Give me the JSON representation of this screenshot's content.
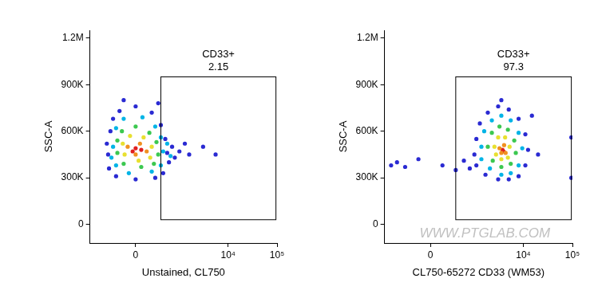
{
  "chart_data": [
    {
      "type": "scatter",
      "x_label": "Unstained, CL750",
      "y_label": "SSC-A",
      "log": "x",
      "grid": false,
      "xlim": [
        -1000,
        100000
      ],
      "xticks": [
        0,
        {
          "value": 10000,
          "label": "10⁴"
        },
        {
          "value": 100000,
          "label": "10⁵"
        }
      ],
      "ylim": [
        -120000,
        1250000
      ],
      "yticks": [
        0,
        {
          "value": 300000,
          "label": "300K"
        },
        {
          "value": 600000,
          "label": "600K"
        },
        {
          "value": 900000,
          "label": "900K"
        },
        {
          "value": 1200000,
          "label": "1.2M"
        }
      ],
      "gate": {
        "name": "CD33+",
        "value": 2.15,
        "x": [
          300,
          95000
        ],
        "y": [
          30000,
          950000
        ]
      },
      "series": [
        {
          "color": "#2a2ad2",
          "x": [
            -350,
            -300,
            -250,
            -150,
            0,
            150,
            300,
            400,
            450,
            500,
            350,
            200,
            0,
            -200,
            -330,
            -380,
            600,
            700,
            900,
            1200,
            1500,
            3000,
            5500,
            -100,
            250
          ],
          "values": [
            450000,
            600000,
            680000,
            730000,
            760000,
            720000,
            640000,
            550000,
            460000,
            400000,
            330000,
            300000,
            290000,
            310000,
            360000,
            520000,
            500000,
            430000,
            470000,
            520000,
            450000,
            500000,
            450000,
            800000,
            780000
          ]
        },
        {
          "color": "#00b4e6",
          "x": [
            -250,
            -200,
            -100,
            50,
            200,
            300,
            350,
            300,
            150,
            -50,
            -200,
            450,
            550,
            -280
          ],
          "values": [
            500000,
            620000,
            680000,
            690000,
            630000,
            560000,
            470000,
            380000,
            340000,
            330000,
            380000,
            520000,
            440000,
            430000
          ]
        },
        {
          "color": "#3cc850",
          "x": [
            -180,
            -120,
            0,
            120,
            220,
            250,
            180,
            40,
            -100,
            -180
          ],
          "values": [
            540000,
            600000,
            630000,
            590000,
            530000,
            450000,
            390000,
            370000,
            390000,
            460000
          ]
        },
        {
          "color": "#e8e030",
          "x": [
            -110,
            -40,
            60,
            150,
            130,
            20,
            -90
          ],
          "values": [
            520000,
            570000,
            560000,
            500000,
            430000,
            410000,
            450000
          ]
        },
        {
          "color": "#f09020",
          "x": [
            -60,
            30,
            90,
            0
          ],
          "values": [
            500000,
            520000,
            470000,
            450000
          ]
        },
        {
          "color": "#e02020",
          "x": [
            0,
            40,
            -20
          ],
          "values": [
            490000,
            480000,
            470000
          ]
        }
      ]
    },
    {
      "type": "scatter",
      "x_label": "CL750-65272 CD33 (WM53)",
      "y_label": "SSC-A",
      "log": "x",
      "grid": false,
      "xlim": [
        -1000,
        100000
      ],
      "xticks": [
        0,
        {
          "value": 10000,
          "label": "10⁴"
        },
        {
          "value": 100000,
          "label": "10⁵"
        }
      ],
      "ylim": [
        -120000,
        1250000
      ],
      "yticks": [
        0,
        {
          "value": 300000,
          "label": "300K"
        },
        {
          "value": 600000,
          "label": "600K"
        },
        {
          "value": 900000,
          "label": "900K"
        },
        {
          "value": 1200000,
          "label": "1.2M"
        }
      ],
      "gate": {
        "name": "CD33+",
        "value": 97.3,
        "x": [
          300,
          95000
        ],
        "y": [
          30000,
          950000
        ]
      },
      "watermark": "WWW.PTGLAB.COM",
      "series": [
        {
          "color": "#2a2ad2",
          "x": [
            900,
            1000,
            1200,
            1800,
            3000,
            5000,
            8000,
            11000,
            12500,
            11000,
            8000,
            5000,
            3000,
            1600,
            1000,
            15000,
            20000,
            -500,
            -300,
            -100,
            100,
            300,
            500,
            700,
            -700,
            95000,
            95000,
            3500
          ],
          "values": [
            450000,
            550000,
            650000,
            720000,
            760000,
            740000,
            680000,
            580000,
            480000,
            380000,
            310000,
            290000,
            290000,
            320000,
            380000,
            700000,
            450000,
            400000,
            370000,
            420000,
            380000,
            350000,
            410000,
            360000,
            380000,
            300000,
            560000,
            800000
          ]
        },
        {
          "color": "#00b4e6",
          "x": [
            1300,
            1500,
            2200,
            3500,
            5500,
            8000,
            9500,
            8000,
            5500,
            3500,
            2000,
            1300
          ],
          "values": [
            500000,
            600000,
            670000,
            700000,
            670000,
            590000,
            490000,
            380000,
            330000,
            320000,
            360000,
            420000
          ]
        },
        {
          "color": "#3cc850",
          "x": [
            1800,
            2200,
            3200,
            4800,
            6500,
            7000,
            5500,
            3500,
            2300
          ],
          "values": [
            500000,
            590000,
            630000,
            610000,
            540000,
            460000,
            390000,
            370000,
            410000
          ]
        },
        {
          "color": "#e8e030",
          "x": [
            2500,
            3000,
            4200,
            5200,
            4800,
            3500,
            2700
          ],
          "values": [
            500000,
            560000,
            560000,
            500000,
            430000,
            420000,
            450000
          ]
        },
        {
          "color": "#f09020",
          "x": [
            3200,
            4000,
            4300,
            3500
          ],
          "values": [
            490000,
            510000,
            460000,
            460000
          ]
        },
        {
          "color": "#e02020",
          "x": [
            3700,
            3900
          ],
          "values": [
            480000,
            470000
          ]
        }
      ]
    }
  ]
}
